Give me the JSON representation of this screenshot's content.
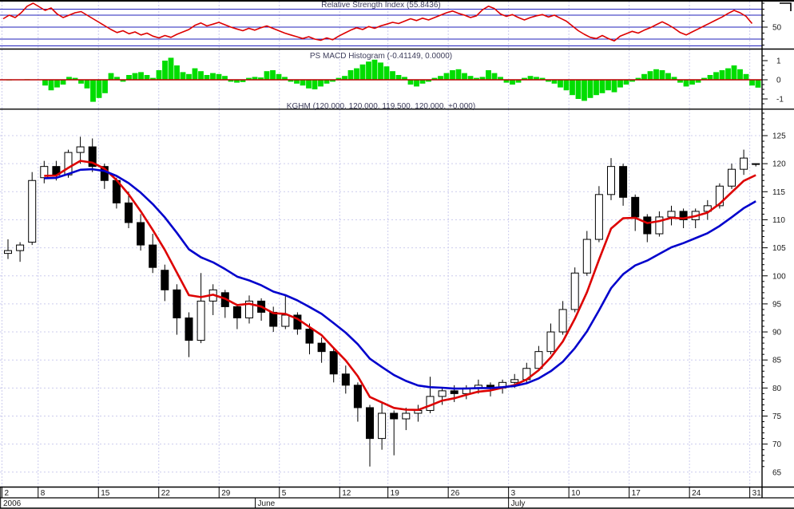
{
  "window": {
    "app_name": "stock-chart-workspace"
  },
  "titles": {
    "rsi": "Relative Strength Index (55.8436)",
    "macd": "PS MACD Histogram (-0.41149, 0.0000)",
    "price": "KGHM (120.000, 120.000, 119.500, 120.000, +0.000)"
  },
  "colors": {
    "rsi_line": "#dd0000",
    "rsi_level_lines": "#2222bb",
    "macd_bars": "#00dd00",
    "macd_zero_line": "#bb0000",
    "candles": "#000000",
    "ema_fast": "#dd0000",
    "ema_slow": "#0000cc",
    "grid": "#ccccee",
    "panel_border": "#000000",
    "axis_text": "#1a1a1a",
    "title_text": "#3c3c5a",
    "background": "#ffffff"
  },
  "axis": {
    "price_labels": [
      125,
      120,
      115,
      110,
      105,
      100,
      95,
      90,
      85,
      80,
      75,
      70,
      65
    ],
    "rsi_labels": [
      {
        "value": 50,
        "label": "50"
      }
    ],
    "macd_labels": [
      {
        "value": 1,
        "label": "1"
      },
      {
        "value": 0,
        "label": "0"
      },
      {
        "value": -1,
        "label": "-1"
      }
    ],
    "year_label": "2006",
    "months": [
      {
        "label": "June",
        "bar": 21
      },
      {
        "label": "July",
        "bar": 42
      }
    ],
    "weeks": [
      {
        "label": "2",
        "bar": 0
      },
      {
        "label": "8",
        "bar": 3
      },
      {
        "label": "15",
        "bar": 8
      },
      {
        "label": "22",
        "bar": 13
      },
      {
        "label": "29",
        "bar": 18
      },
      {
        "label": "5",
        "bar": 23
      },
      {
        "label": "12",
        "bar": 28
      },
      {
        "label": "19",
        "bar": 32
      },
      {
        "label": "26",
        "bar": 37
      },
      {
        "label": "3",
        "bar": 42
      },
      {
        "label": "10",
        "bar": 47
      },
      {
        "label": "17",
        "bar": 52
      },
      {
        "label": "24",
        "bar": 57
      },
      {
        "label": "31",
        "bar": 62
      }
    ]
  },
  "chart_data": [
    {
      "type": "line",
      "name": "relative-strength-index",
      "panel": "top",
      "title": "Relative Strength Index (55.8436)",
      "last_value": 55.8436,
      "ylim": [
        0,
        100
      ],
      "level_lines": [
        80,
        70,
        50,
        30
      ],
      "legend_position": "none",
      "grid": "vertical-weekly",
      "values": [
        64,
        70,
        66,
        74,
        85,
        90,
        84,
        78,
        82,
        72,
        66,
        70,
        74,
        76,
        70,
        64,
        58,
        52,
        46,
        41,
        44,
        39,
        42,
        37,
        40,
        35,
        32,
        36,
        33,
        38,
        42,
        46,
        53,
        57,
        52,
        55,
        58,
        54,
        50,
        47,
        44,
        48,
        45,
        49,
        52,
        48,
        44,
        40,
        37,
        34,
        31,
        34,
        30,
        28,
        32,
        29,
        35,
        40,
        45,
        49,
        46,
        51,
        48,
        52,
        55,
        58,
        56,
        60,
        64,
        61,
        65,
        62,
        66,
        70,
        74,
        77,
        73,
        70,
        66,
        69,
        79,
        85,
        81,
        72,
        68,
        71,
        66,
        62,
        66,
        69,
        71,
        67,
        70,
        65,
        60,
        52,
        44,
        38,
        33,
        31,
        36,
        31,
        27,
        35,
        39,
        43,
        40,
        45,
        49,
        54,
        59,
        54,
        48,
        41,
        37,
        42,
        47,
        52,
        57,
        62,
        67,
        73,
        78,
        74,
        68,
        56
      ]
    },
    {
      "type": "bar",
      "name": "ps-macd-histogram",
      "panel": "middle",
      "title": "PS MACD Histogram (-0.41149, 0.0000)",
      "last_values": [
        -0.41149,
        0.0
      ],
      "ylim": [
        -1.5,
        1.5
      ],
      "zero_line": 0,
      "legend_position": "none",
      "grid": "vertical-weekly",
      "values": [
        0.02,
        -0.03,
        0.02,
        -0.02,
        0.03,
        -0.02,
        0.02,
        -0.3,
        -0.55,
        -0.4,
        -0.25,
        0.15,
        0.1,
        -0.2,
        -0.45,
        -1.15,
        -0.95,
        -0.7,
        0.35,
        0.15,
        -0.1,
        0.25,
        0.35,
        0.4,
        0.25,
        0.1,
        0.5,
        1.0,
        1.15,
        0.75,
        0.4,
        0.3,
        0.6,
        0.45,
        0.25,
        0.35,
        0.3,
        0.2,
        -0.1,
        -0.15,
        -0.12,
        0.1,
        0.15,
        0.12,
        0.45,
        0.5,
        0.3,
        0.15,
        -0.1,
        -0.2,
        -0.3,
        -0.45,
        -0.5,
        -0.35,
        -0.2,
        -0.1,
        0.1,
        0.2,
        0.5,
        0.6,
        0.8,
        0.95,
        1.05,
        0.9,
        0.7,
        0.45,
        0.25,
        0.15,
        -0.25,
        -0.35,
        -0.2,
        -0.1,
        0.1,
        0.2,
        0.35,
        0.5,
        0.55,
        0.35,
        0.2,
        0.1,
        0.15,
        0.5,
        0.35,
        0.15,
        -0.15,
        -0.25,
        -0.15,
        0.1,
        0.2,
        0.15,
        0.1,
        -0.1,
        -0.2,
        -0.4,
        -0.55,
        -0.8,
        -1.0,
        -1.1,
        -0.95,
        -0.8,
        -0.7,
        -0.55,
        -0.65,
        -0.4,
        -0.25,
        -0.1,
        0.1,
        0.3,
        0.45,
        0.55,
        0.5,
        0.35,
        0.15,
        -0.15,
        -0.35,
        -0.25,
        -0.15,
        0.1,
        0.25,
        0.4,
        0.5,
        0.6,
        0.75,
        0.55,
        0.3,
        -0.3,
        -0.41
      ]
    },
    {
      "type": "candlestick",
      "name": "kghm-price",
      "panel": "main",
      "title": "KGHM (120.000, 120.000, 119.500, 120.000, +0.000)",
      "symbol": "KGHM",
      "last_ohlc": {
        "open": 120.0,
        "high": 120.0,
        "low": 119.5,
        "close": 120.0,
        "change": 0.0
      },
      "ylim": [
        65,
        130
      ],
      "y_gridlines_every": 5,
      "legend_position": "none",
      "categories": [
        "May 2",
        "May 4",
        "May 5",
        "May 8",
        "May 9",
        "May 10",
        "May 11",
        "May 12",
        "May 15",
        "May 16",
        "May 17",
        "May 18",
        "May 19",
        "May 22",
        "May 23",
        "May 24",
        "May 25",
        "May 26",
        "May 29",
        "May 30",
        "May 31",
        "Jun 1",
        "Jun 2",
        "Jun 5",
        "Jun 6",
        "Jun 7",
        "Jun 8",
        "Jun 9",
        "Jun 12",
        "Jun 13",
        "Jun 14",
        "Jun 16",
        "Jun 19",
        "Jun 20",
        "Jun 21",
        "Jun 22",
        "Jun 23",
        "Jun 26",
        "Jun 27",
        "Jun 28",
        "Jun 29",
        "Jun 30",
        "Jul 3",
        "Jul 4",
        "Jul 5",
        "Jul 6",
        "Jul 7",
        "Jul 10",
        "Jul 11",
        "Jul 12",
        "Jul 13",
        "Jul 14",
        "Jul 17",
        "Jul 18",
        "Jul 19",
        "Jul 20",
        "Jul 21",
        "Jul 24",
        "Jul 25",
        "Jul 26",
        "Jul 27",
        "Jul 28",
        "Jul 31"
      ],
      "open": [
        104.0,
        104.5,
        106.0,
        117.5,
        119.5,
        118.0,
        122.0,
        123.0,
        119.5,
        117.0,
        113.0,
        109.5,
        105.5,
        101.0,
        97.5,
        92.5,
        88.5,
        95.5,
        97.0,
        94.5,
        92.5,
        95.5,
        93.5,
        91.0,
        93.0,
        90.5,
        88.0,
        86.5,
        82.5,
        80.5,
        76.5,
        71.0,
        75.5,
        74.5,
        75.5,
        76.0,
        78.5,
        79.5,
        79.0,
        80.0,
        80.5,
        80.0,
        81.0,
        81.5,
        83.5,
        86.5,
        90.0,
        94.0,
        100.5,
        106.5,
        114.5,
        119.5,
        114.0,
        110.5,
        107.5,
        110.5,
        111.5,
        110.0,
        111.5,
        112.5,
        116.0,
        119.0,
        120.0
      ],
      "high": [
        106.5,
        106.0,
        118.5,
        120.5,
        120.5,
        122.5,
        124.8,
        124.5,
        120.0,
        117.5,
        115.0,
        111.0,
        107.5,
        102.0,
        98.5,
        93.5,
        100.5,
        98.5,
        97.5,
        95.0,
        96.5,
        96.0,
        94.5,
        96.5,
        93.5,
        91.5,
        89.0,
        87.0,
        84.0,
        81.0,
        77.0,
        77.5,
        76.0,
        76.5,
        77.0,
        82.0,
        80.0,
        80.5,
        80.5,
        81.5,
        81.0,
        81.5,
        82.5,
        84.5,
        87.5,
        91.5,
        95.5,
        101.5,
        108.0,
        116.0,
        121.0,
        120.0,
        114.5,
        111.0,
        111.5,
        112.5,
        112.0,
        112.0,
        113.5,
        116.5,
        120.0,
        122.5,
        120.0
      ],
      "low": [
        103.0,
        102.5,
        105.5,
        116.5,
        117.0,
        117.5,
        120.0,
        118.5,
        115.5,
        112.0,
        108.5,
        104.5,
        100.5,
        95.5,
        89.5,
        85.5,
        88.0,
        93.0,
        92.5,
        90.5,
        91.5,
        92.0,
        90.0,
        90.5,
        89.5,
        86.0,
        84.5,
        81.0,
        79.0,
        74.0,
        66.0,
        69.0,
        68.0,
        72.5,
        74.0,
        75.5,
        77.0,
        77.5,
        78.0,
        79.0,
        78.5,
        79.0,
        80.0,
        81.0,
        83.0,
        86.0,
        89.5,
        93.5,
        100.0,
        106.0,
        113.5,
        112.5,
        108.0,
        106.0,
        107.0,
        109.0,
        108.5,
        108.5,
        110.0,
        112.0,
        115.5,
        118.0,
        119.5
      ],
      "close": [
        104.5,
        105.5,
        117.0,
        119.5,
        118.0,
        122.0,
        123.0,
        119.5,
        117.0,
        113.0,
        109.5,
        105.5,
        101.5,
        97.5,
        92.5,
        88.5,
        95.5,
        97.5,
        94.5,
        92.5,
        95.5,
        93.5,
        91.0,
        93.0,
        90.5,
        88.0,
        86.5,
        82.5,
        80.5,
        76.5,
        71.0,
        75.5,
        74.5,
        75.5,
        76.0,
        78.5,
        79.5,
        79.0,
        80.0,
        80.5,
        80.0,
        81.0,
        81.5,
        83.5,
        86.5,
        90.0,
        94.0,
        100.5,
        106.5,
        114.5,
        119.5,
        114.0,
        110.5,
        107.5,
        110.5,
        111.5,
        110.0,
        111.5,
        112.5,
        116.0,
        119.0,
        121.0,
        120.0
      ],
      "overlays": [
        {
          "name": "ema-fast",
          "type": "ema",
          "period": 5,
          "color": "#dd0000"
        },
        {
          "name": "ema-slow",
          "type": "ema",
          "period": 12,
          "color": "#0000cc"
        }
      ]
    }
  ]
}
